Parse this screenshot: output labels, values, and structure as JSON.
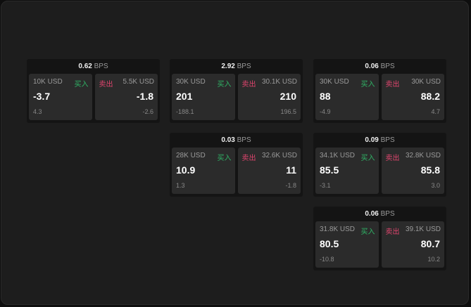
{
  "widgets": [
    {
      "bps": "0.62",
      "unit": "BPS",
      "bid_size": "10K USD",
      "buy": "买入",
      "bid": "-3.7",
      "bid_chg": "4.3",
      "sell": "卖出",
      "ask_size": "5.5K USD",
      "ask": "-1.8",
      "ask_chg": "-2.6"
    },
    {
      "bps": "2.92",
      "unit": "BPS",
      "bid_size": "30K USD",
      "buy": "买入",
      "bid": "201",
      "bid_chg": "-188.1",
      "sell": "卖出",
      "ask_size": "30.1K USD",
      "ask": "210",
      "ask_chg": "196.5"
    },
    {
      "bps": "0.06",
      "unit": "BPS",
      "bid_size": "30K USD",
      "buy": "买入",
      "bid": "88",
      "bid_chg": "-4.9",
      "sell": "卖出",
      "ask_size": "30K USD",
      "ask": "88.2",
      "ask_chg": "4.7"
    },
    {
      "bps": "0.03",
      "unit": "BPS",
      "bid_size": "28K USD",
      "buy": "买入",
      "bid": "10.9",
      "bid_chg": "1.3",
      "sell": "卖出",
      "ask_size": "32.6K USD",
      "ask": "11",
      "ask_chg": "-1.8"
    },
    {
      "bps": "0.09",
      "unit": "BPS",
      "bid_size": "34.1K USD",
      "buy": "买入",
      "bid": "85.5",
      "bid_chg": "-3.1",
      "sell": "卖出",
      "ask_size": "32.8K USD",
      "ask": "85.8",
      "ask_chg": "3.0"
    },
    {
      "bps": "0.06",
      "unit": "BPS",
      "bid_size": "31.8K USD",
      "buy": "买入",
      "bid": "80.5",
      "bid_chg": "-10.8",
      "sell": "卖出",
      "ask_size": "39.1K USD",
      "ask": "80.7",
      "ask_chg": "10.2"
    }
  ],
  "colors": {
    "buy": "#2fb466",
    "sell": "#e0456e"
  }
}
